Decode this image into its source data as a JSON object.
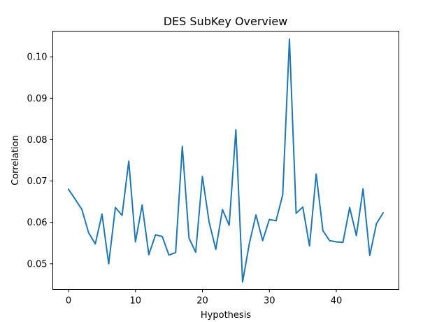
{
  "chart_data": {
    "type": "line",
    "title": "DES SubKey Overview",
    "xlabel": "Hypothesis",
    "ylabel": "Correlation",
    "xlim": [
      -2.35,
      49.35
    ],
    "ylim": [
      0.0438,
      0.1062
    ],
    "xticks": [
      0,
      10,
      20,
      30,
      40
    ],
    "yticks": [
      0.05,
      0.06,
      0.07,
      0.08,
      0.09,
      0.1
    ],
    "ytick_labels": [
      "0.05",
      "0.06",
      "0.07",
      "0.08",
      "0.09",
      "0.10"
    ],
    "grid": false,
    "color": "#1f77b4",
    "series": [
      {
        "x": [
          0,
          1,
          2,
          3,
          4,
          5,
          6,
          7,
          8,
          9,
          10,
          11,
          12,
          13,
          14,
          15,
          16,
          17,
          18,
          19,
          20,
          21,
          22,
          23,
          24,
          25,
          26,
          27,
          28,
          29,
          30,
          31,
          32,
          33,
          34,
          35,
          36,
          37,
          38,
          39,
          40,
          41,
          42,
          43,
          44,
          45,
          46,
          47
        ],
        "values": [
          0.068,
          0.0656,
          0.0631,
          0.0575,
          0.0548,
          0.062,
          0.05,
          0.0636,
          0.0617,
          0.0748,
          0.0553,
          0.0642,
          0.0522,
          0.057,
          0.0566,
          0.0521,
          0.0527,
          0.0784,
          0.0562,
          0.0528,
          0.0711,
          0.0601,
          0.0535,
          0.0631,
          0.0593,
          0.0824,
          0.0456,
          0.0548,
          0.0618,
          0.0556,
          0.0607,
          0.0604,
          0.0667,
          0.1043,
          0.0622,
          0.0637,
          0.0543,
          0.0717,
          0.058,
          0.0556,
          0.0553,
          0.0552,
          0.0636,
          0.0568,
          0.0681,
          0.052,
          0.0597,
          0.0623
        ]
      }
    ]
  }
}
